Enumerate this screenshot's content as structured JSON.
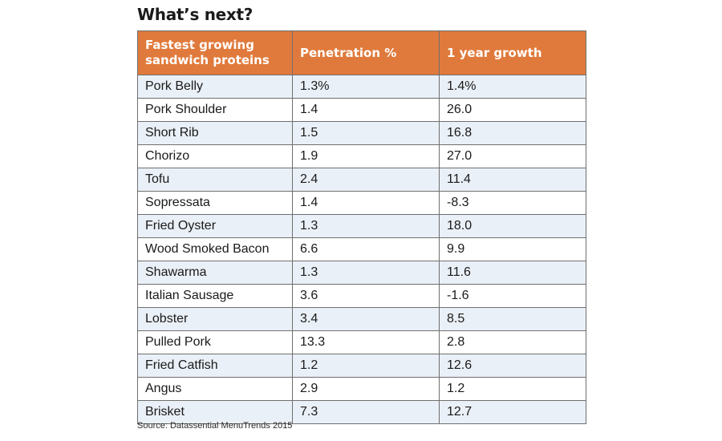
{
  "title": "What’s next?",
  "source": "Source: Datassential MenuTrends 2015",
  "chart_data": {
    "type": "table",
    "columns": [
      "Fastest growing sandwich proteins",
      "Penetration %",
      "1 year growth"
    ],
    "rows": [
      [
        "Pork Belly",
        "1.3%",
        "1.4%"
      ],
      [
        "Pork Shoulder",
        "1.4",
        "26.0"
      ],
      [
        "Short Rib",
        "1.5",
        "16.8"
      ],
      [
        "Chorizo",
        "1.9",
        "27.0"
      ],
      [
        "Tofu",
        "2.4",
        "11.4"
      ],
      [
        "Sopressata",
        "1.4",
        "-8.3"
      ],
      [
        "Fried Oyster",
        "1.3",
        "18.0"
      ],
      [
        "Wood Smoked Bacon",
        "6.6",
        "9.9"
      ],
      [
        "Shawarma",
        "1.3",
        "11.6"
      ],
      [
        "Italian Sausage",
        "3.6",
        "-1.6"
      ],
      [
        "Lobster",
        "3.4",
        "8.5"
      ],
      [
        "Pulled Pork",
        "13.3",
        "2.8"
      ],
      [
        "Fried Catfish",
        "1.2",
        "12.6"
      ],
      [
        "Angus",
        "2.9",
        "1.2"
      ],
      [
        "Brisket",
        "7.3",
        "12.7"
      ]
    ]
  },
  "colors": {
    "header_bg": "#e07a3c",
    "header_text": "#ffffff",
    "row_alt_bg": "#eaf0f7",
    "border": "#6f6f6f"
  }
}
